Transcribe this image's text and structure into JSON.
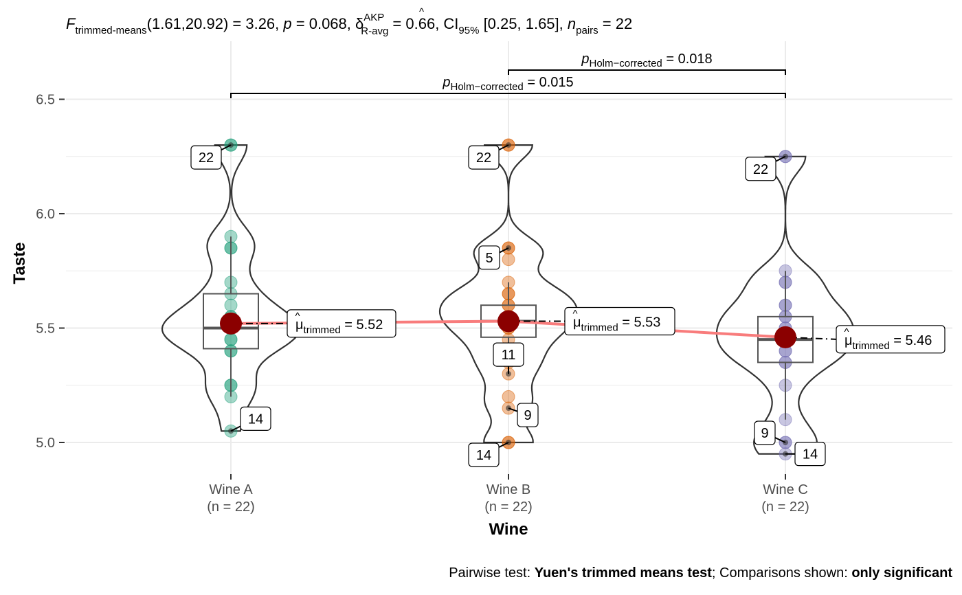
{
  "subtitle": {
    "stat_symbol": "F",
    "stat_sub": "trimmed-means",
    "df_text": "(1.61,20.92) = 3.26, ",
    "p_symbol": "p",
    "p_text": " = 0.068, ",
    "effect_symbol": "δ",
    "effect_hat": "^",
    "effect_sup": "AKP",
    "effect_sub": "R-avg",
    "effect_text": " = 0.66, CI",
    "ci_sub": "95%",
    "ci_text": " [0.25, 1.65], ",
    "n_symbol": "n",
    "n_sub": "pairs",
    "n_text": " = 22"
  },
  "caption": {
    "prefix": "Pairwise test: ",
    "test": "Yuen's trimmed means test",
    "middle": "; Comparisons shown: ",
    "shown": "only significant"
  },
  "colors": {
    "wine_a": "#1b9e77",
    "wine_b": "#d95f02",
    "wine_c": "#7570b3",
    "mean_point": "#8b0000",
    "mean_line": "#f87c7c",
    "grid": "#ebebeb"
  },
  "chart_data": {
    "type": "violin-box-paired",
    "xlabel": "Wine",
    "ylabel": "Taste",
    "ylim": [
      4.9,
      6.7
    ],
    "yticks": [
      "5.0",
      "5.5",
      "6.0",
      "6.5"
    ],
    "grid": true,
    "categories": [
      {
        "name": "Wine A",
        "n_label": "(n = 22)"
      },
      {
        "name": "Wine B",
        "n_label": "(n = 22)"
      },
      {
        "name": "Wine C",
        "n_label": "(n = 22)"
      }
    ],
    "series": [
      {
        "values": [
          5.05,
          5.2,
          5.25,
          5.25,
          5.4,
          5.4,
          5.45,
          5.45,
          5.5,
          5.5,
          5.5,
          5.5,
          5.55,
          5.55,
          5.6,
          5.65,
          5.7,
          5.85,
          5.85,
          5.9,
          6.3,
          6.3
        ],
        "box": {
          "q1": 5.41,
          "median": 5.5,
          "q3": 5.65,
          "whisker_low": 5.2,
          "whisker_high": 5.9
        },
        "trimmed_mean": 5.52,
        "mean_label": " = 5.52",
        "outliers": [
          {
            "id": "22",
            "value": 6.3
          },
          {
            "id": "14",
            "value": 5.05
          }
        ]
      },
      {
        "values": [
          5.0,
          5.0,
          5.15,
          5.2,
          5.3,
          5.35,
          5.4,
          5.45,
          5.5,
          5.5,
          5.55,
          5.55,
          5.6,
          5.6,
          5.65,
          5.65,
          5.7,
          5.8,
          5.85,
          5.85,
          6.3,
          6.3
        ],
        "box": {
          "q1": 5.46,
          "median": 5.53,
          "q3": 5.6,
          "whisker_low": 5.35,
          "whisker_high": 5.7
        },
        "trimmed_mean": 5.53,
        "mean_label": " = 5.53",
        "outliers": [
          {
            "id": "22",
            "value": 6.3
          },
          {
            "id": "5",
            "value": 5.85
          },
          {
            "id": "11",
            "value": 5.3
          },
          {
            "id": "9",
            "value": 5.15
          },
          {
            "id": "14",
            "value": 5.0
          }
        ]
      },
      {
        "values": [
          4.95,
          5.0,
          5.0,
          5.1,
          5.25,
          5.35,
          5.35,
          5.4,
          5.4,
          5.45,
          5.45,
          5.5,
          5.5,
          5.55,
          5.55,
          5.6,
          5.6,
          5.7,
          5.7,
          5.75,
          6.25,
          6.25
        ],
        "box": {
          "q1": 5.35,
          "median": 5.45,
          "q3": 5.55,
          "whisker_low": 5.1,
          "whisker_high": 5.75
        },
        "trimmed_mean": 5.46,
        "mean_label": " = 5.46",
        "outliers": [
          {
            "id": "22",
            "value": 6.25
          },
          {
            "id": "9",
            "value": 5.0
          },
          {
            "id": "14",
            "value": 4.95
          }
        ]
      }
    ],
    "mean_symbol": "μ",
    "mean_sub": "trimmed",
    "comparisons": [
      {
        "from": 1,
        "to": 2,
        "p_symbol": "p",
        "p_sub": "Holm−corrected",
        "p_text": " = 0.018"
      },
      {
        "from": 0,
        "to": 2,
        "p_symbol": "p",
        "p_sub": "Holm−corrected",
        "p_text": " = 0.015"
      }
    ]
  }
}
